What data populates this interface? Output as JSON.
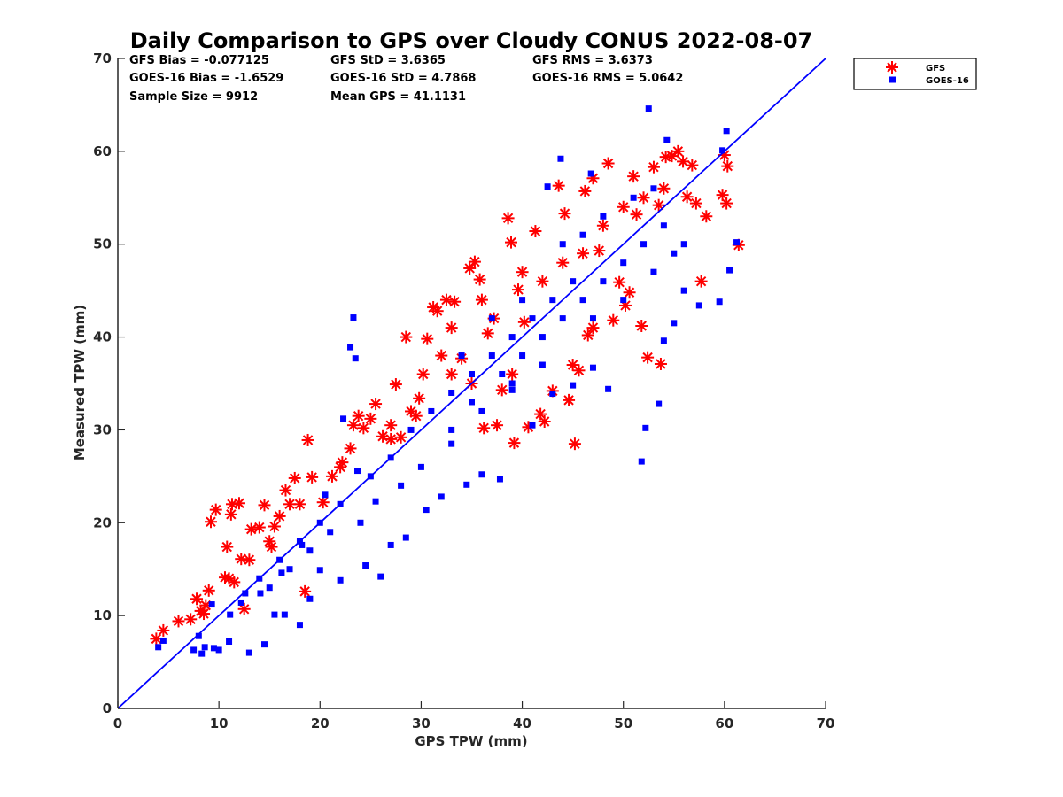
{
  "chart_data": {
    "type": "scatter",
    "title": "Daily Comparison to GPS over Cloudy CONUS 2022-08-07",
    "xlabel": "GPS TPW (mm)",
    "ylabel": "Measured TPW (mm)",
    "xlim": [
      0,
      70
    ],
    "ylim": [
      0,
      70
    ],
    "xticks": [
      "0",
      "10",
      "20",
      "30",
      "40",
      "50",
      "60",
      "70"
    ],
    "yticks": [
      "0",
      "10",
      "20",
      "30",
      "40",
      "50",
      "60",
      "70"
    ],
    "grid": false,
    "legend_position": "outside-top-right",
    "stats": [
      [
        "GFS Bias = -0.077125",
        "GFS StD = 3.6365",
        "GFS RMS = 3.6373"
      ],
      [
        "GOES-16 Bias = -1.6529",
        "GOES-16 StD = 4.7868",
        "GOES-16 RMS = 5.0642"
      ],
      [
        "Sample Size = 9912",
        "Mean GPS = 41.1131",
        ""
      ]
    ],
    "reference_line": {
      "x": [
        0,
        70
      ],
      "y": [
        0,
        70
      ],
      "color": "#0000ff"
    },
    "series": [
      {
        "name": "GFS",
        "marker": "asterisk",
        "color": "#ff0000",
        "points": [
          [
            3.8,
            7.5
          ],
          [
            4.5,
            8.4
          ],
          [
            6,
            9.4
          ],
          [
            7.2,
            9.6
          ],
          [
            7.8,
            11.8
          ],
          [
            8.2,
            10.5
          ],
          [
            8.5,
            10.2
          ],
          [
            8.7,
            11.1
          ],
          [
            9,
            12.7
          ],
          [
            9.2,
            20.1
          ],
          [
            9.7,
            21.4
          ],
          [
            10.6,
            14.1
          ],
          [
            10.8,
            17.4
          ],
          [
            11.2,
            20.9
          ],
          [
            11.3,
            22
          ],
          [
            11.5,
            13.6
          ],
          [
            12,
            22.1
          ],
          [
            12.2,
            16.1
          ],
          [
            12.5,
            10.7
          ],
          [
            13.2,
            19.3
          ],
          [
            14,
            19.5
          ],
          [
            14.5,
            21.9
          ],
          [
            15.2,
            17.4
          ],
          [
            15.5,
            19.6
          ],
          [
            16,
            20.7
          ],
          [
            16.6,
            23.5
          ],
          [
            17,
            22
          ],
          [
            17.5,
            24.8
          ],
          [
            18.5,
            12.6
          ],
          [
            18.8,
            28.9
          ],
          [
            19.2,
            24.9
          ],
          [
            20.3,
            22.2
          ],
          [
            21.2,
            25
          ],
          [
            22.2,
            26.5
          ],
          [
            23,
            28
          ],
          [
            23.3,
            30.5
          ],
          [
            23.8,
            31.5
          ],
          [
            24.3,
            30.2
          ],
          [
            25,
            31.2
          ],
          [
            25.5,
            32.8
          ],
          [
            26.2,
            29.3
          ],
          [
            27,
            30.5
          ],
          [
            27.5,
            34.9
          ],
          [
            28,
            29.2
          ],
          [
            28.5,
            40
          ],
          [
            29.5,
            31.5
          ],
          [
            29.8,
            33.4
          ],
          [
            30.2,
            36
          ],
          [
            30.6,
            39.8
          ],
          [
            31.2,
            43.2
          ],
          [
            31.6,
            42.8
          ],
          [
            32,
            38
          ],
          [
            32.5,
            44
          ],
          [
            33.3,
            43.8
          ],
          [
            34,
            37.7
          ],
          [
            34.8,
            47.4
          ],
          [
            35.3,
            48.1
          ],
          [
            35.8,
            46.2
          ],
          [
            36.2,
            30.2
          ],
          [
            36.6,
            40.4
          ],
          [
            37.2,
            42
          ],
          [
            37.5,
            30.5
          ],
          [
            38,
            34.3
          ],
          [
            38.6,
            52.8
          ],
          [
            38.9,
            50.2
          ],
          [
            39.2,
            28.6
          ],
          [
            39.6,
            45.1
          ],
          [
            40.2,
            41.6
          ],
          [
            40.6,
            30.3
          ],
          [
            41.3,
            51.4
          ],
          [
            41.8,
            31.7
          ],
          [
            42.2,
            30.9
          ],
          [
            43,
            34.2
          ],
          [
            43.6,
            56.3
          ],
          [
            44.2,
            53.3
          ],
          [
            44.6,
            33.2
          ],
          [
            45.2,
            28.5
          ],
          [
            45.6,
            36.4
          ],
          [
            46.2,
            55.7
          ],
          [
            46.5,
            40.2
          ],
          [
            47,
            57.1
          ],
          [
            47.6,
            49.3
          ],
          [
            48.5,
            58.7
          ],
          [
            49,
            41.8
          ],
          [
            49.6,
            45.9
          ],
          [
            50.2,
            43.4
          ],
          [
            50.6,
            44.8
          ],
          [
            51,
            57.3
          ],
          [
            51.3,
            53.2
          ],
          [
            51.8,
            41.2
          ],
          [
            52.4,
            37.8
          ],
          [
            53,
            58.3
          ],
          [
            53.5,
            54.2
          ],
          [
            53.7,
            37.1
          ],
          [
            54.2,
            59.4
          ],
          [
            54.8,
            59.5
          ],
          [
            55.4,
            60
          ],
          [
            55.9,
            58.9
          ],
          [
            56.3,
            55.1
          ],
          [
            56.8,
            58.5
          ],
          [
            57.2,
            54.4
          ],
          [
            57.7,
            46
          ],
          [
            58.2,
            53
          ],
          [
            59.8,
            55.3
          ],
          [
            60,
            59.6
          ],
          [
            60.2,
            54.4
          ],
          [
            60.3,
            58.4
          ],
          [
            61.4,
            49.9
          ],
          [
            33,
            41
          ],
          [
            36,
            44
          ],
          [
            40,
            47
          ],
          [
            42,
            46
          ],
          [
            44,
            48
          ],
          [
            46,
            49
          ],
          [
            48,
            52
          ],
          [
            50,
            54
          ],
          [
            52,
            55
          ],
          [
            54,
            56
          ],
          [
            45,
            37
          ],
          [
            47,
            41
          ],
          [
            39,
            36
          ],
          [
            35,
            35
          ],
          [
            33,
            36
          ],
          [
            29,
            32
          ],
          [
            27,
            29
          ],
          [
            22,
            26
          ],
          [
            18,
            22
          ],
          [
            15,
            18
          ],
          [
            13,
            16
          ],
          [
            11,
            14
          ]
        ]
      },
      {
        "name": "GOES-16",
        "marker": "square",
        "color": "#0000ff",
        "points": [
          [
            4,
            6.6
          ],
          [
            4.5,
            7.3
          ],
          [
            7.5,
            6.3
          ],
          [
            8,
            7.8
          ],
          [
            8.3,
            5.9
          ],
          [
            8.6,
            6.6
          ],
          [
            9.5,
            6.5
          ],
          [
            10,
            6.3
          ],
          [
            11,
            7.2
          ],
          [
            12.2,
            11.4
          ],
          [
            13,
            6
          ],
          [
            14.5,
            6.9
          ],
          [
            15.5,
            10.1
          ],
          [
            16.5,
            10.1
          ],
          [
            18,
            9
          ],
          [
            19,
            11.8
          ],
          [
            20,
            14.9
          ],
          [
            22,
            13.8
          ],
          [
            24.5,
            15.4
          ],
          [
            26,
            14.2
          ],
          [
            27,
            17.6
          ],
          [
            28.5,
            18.4
          ],
          [
            30.5,
            21.4
          ],
          [
            32,
            22.8
          ],
          [
            33,
            28.5
          ],
          [
            34.5,
            24.1
          ],
          [
            36,
            25.2
          ],
          [
            37.8,
            24.7
          ],
          [
            39,
            34.3
          ],
          [
            41,
            30.5
          ],
          [
            43,
            33.9
          ],
          [
            45,
            34.8
          ],
          [
            47,
            36.7
          ],
          [
            48.5,
            34.4
          ],
          [
            51.8,
            26.6
          ],
          [
            52.2,
            30.2
          ],
          [
            53.5,
            32.8
          ],
          [
            54,
            39.6
          ],
          [
            55,
            41.5
          ],
          [
            56,
            45
          ],
          [
            57.5,
            43.4
          ],
          [
            59.5,
            43.8
          ],
          [
            59.8,
            60.1
          ],
          [
            60.2,
            62.2
          ],
          [
            60.5,
            47.2
          ],
          [
            61.2,
            50.2
          ],
          [
            52.5,
            64.6
          ],
          [
            54.3,
            61.2
          ],
          [
            43.8,
            59.2
          ],
          [
            46.8,
            57.6
          ],
          [
            42.5,
            56.2
          ],
          [
            23.3,
            42.1
          ],
          [
            23,
            38.9
          ],
          [
            23.5,
            37.7
          ],
          [
            22.3,
            31.2
          ],
          [
            23.7,
            25.6
          ],
          [
            25.5,
            22.3
          ],
          [
            20.5,
            23
          ],
          [
            18.2,
            17.6
          ],
          [
            16.2,
            14.6
          ],
          [
            14.1,
            12.4
          ],
          [
            12.6,
            12.4
          ],
          [
            11.1,
            10.1
          ],
          [
            9.3,
            11.2
          ],
          [
            35,
            33
          ],
          [
            38,
            36
          ],
          [
            40,
            38
          ],
          [
            42,
            40
          ],
          [
            44,
            42
          ],
          [
            46,
            44
          ],
          [
            48,
            46
          ],
          [
            50,
            48
          ],
          [
            52,
            50
          ],
          [
            54,
            52
          ],
          [
            56,
            50
          ],
          [
            45,
            46
          ],
          [
            43,
            44
          ],
          [
            41,
            42
          ],
          [
            39,
            40
          ],
          [
            37,
            38
          ],
          [
            35,
            36
          ],
          [
            33,
            34
          ],
          [
            31,
            32
          ],
          [
            29,
            30
          ],
          [
            27,
            27
          ],
          [
            25,
            25
          ],
          [
            22,
            22
          ],
          [
            20,
            20
          ],
          [
            18,
            18
          ],
          [
            16,
            16
          ],
          [
            14,
            14
          ],
          [
            33,
            30
          ],
          [
            36,
            32
          ],
          [
            39,
            35
          ],
          [
            42,
            37
          ],
          [
            47,
            42
          ],
          [
            50,
            44
          ],
          [
            53,
            47
          ],
          [
            55,
            49
          ],
          [
            30,
            26
          ],
          [
            28,
            24
          ],
          [
            24,
            20
          ],
          [
            21,
            19
          ],
          [
            19,
            17
          ],
          [
            17,
            15
          ],
          [
            15,
            13
          ],
          [
            44,
            50
          ],
          [
            48,
            53
          ],
          [
            51,
            55
          ],
          [
            53,
            56
          ],
          [
            46,
            51
          ],
          [
            40,
            44
          ],
          [
            37,
            42
          ],
          [
            34,
            38
          ]
        ]
      }
    ]
  }
}
